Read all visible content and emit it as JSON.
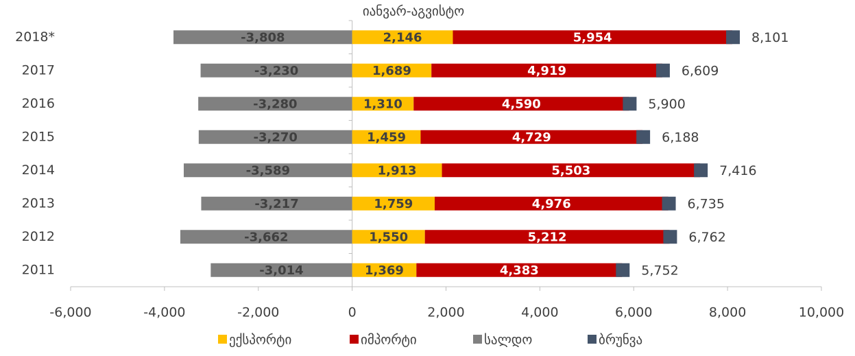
{
  "chart_data": {
    "type": "bar",
    "subtitle": "იანვარ-აგვისტო",
    "categories": [
      "2018*",
      "2017",
      "2016",
      "2015",
      "2014",
      "2013",
      "2012",
      "2011"
    ],
    "series": [
      {
        "name": "ექსპორტი",
        "color": "#ffc000",
        "values": [
          2146,
          1689,
          1310,
          1459,
          1913,
          1759,
          1550,
          1369
        ],
        "value_labels": [
          "2,146",
          "1,689",
          "1,310",
          "1,459",
          "1,913",
          "1,759",
          "1,550",
          "1,369"
        ]
      },
      {
        "name": "იმპორტი",
        "color": "#c00000",
        "values": [
          5954,
          4919,
          4590,
          4729,
          5503,
          4976,
          5212,
          4383
        ],
        "value_labels": [
          "5,954",
          "4,919",
          "4,590",
          "4,729",
          "5,503",
          "4,976",
          "5,212",
          "4,383"
        ]
      },
      {
        "name": "სალდო",
        "color": "#808080",
        "values": [
          -3808,
          -3230,
          -3280,
          -3270,
          -3589,
          -3217,
          -3662,
          -3014
        ],
        "value_labels": [
          "-3,808",
          "-3,230",
          "-3,280",
          "-3,270",
          "-3,589",
          "-3,217",
          "-3,662",
          "-3,014"
        ]
      },
      {
        "name": "ბრუნვა",
        "color": "#44546a",
        "values": [
          8101,
          6609,
          5900,
          6188,
          7416,
          6735,
          6762,
          5752
        ],
        "value_labels": [
          "8,101",
          "6,609",
          "5,900",
          "6,188",
          "7,416",
          "6,735",
          "6,762",
          "5,752"
        ]
      }
    ],
    "xlim": [
      -6000,
      10000
    ],
    "xticks": [
      {
        "value": -6000,
        "label": "-6,000"
      },
      {
        "value": -4000,
        "label": "-4,000"
      },
      {
        "value": -2000,
        "label": "-2,000"
      },
      0,
      {
        "value": 2000,
        "label": "2,000"
      },
      {
        "value": 4000,
        "label": "4,000"
      },
      {
        "value": 6000,
        "label": "6,000"
      },
      {
        "value": 8000,
        "label": "8,000"
      },
      {
        "value": 10000,
        "label": "10,000"
      }
    ],
    "legend": "bottom"
  }
}
